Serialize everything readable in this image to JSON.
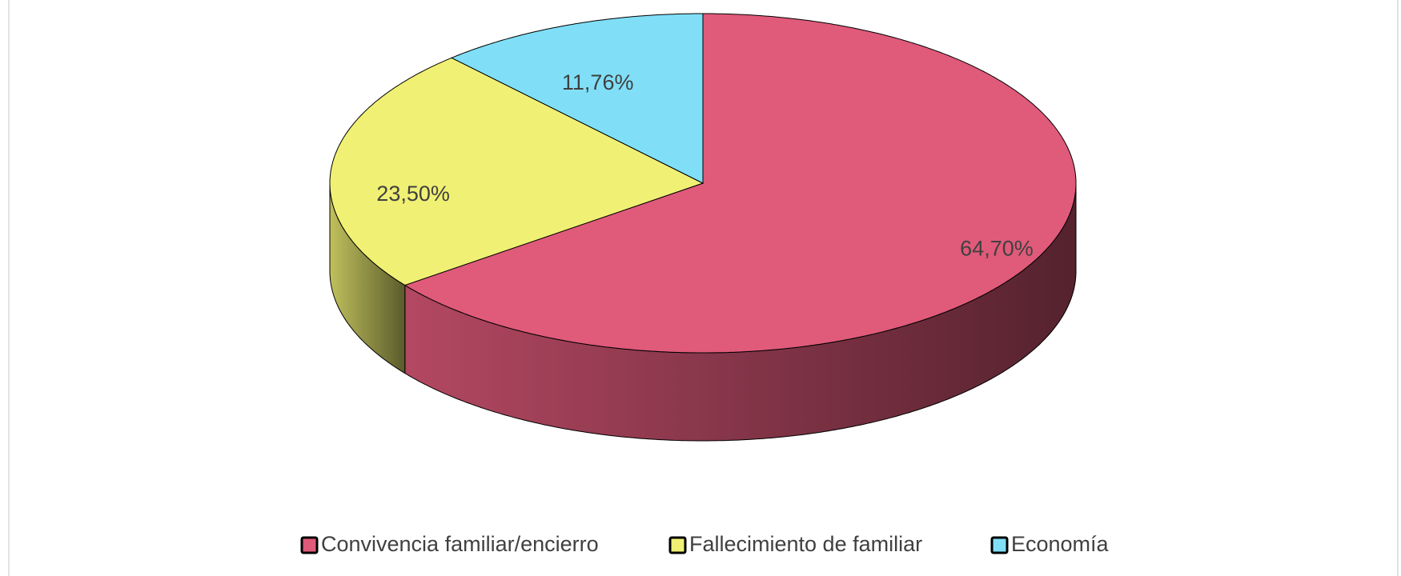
{
  "chart_data": {
    "type": "pie",
    "categories": [
      "Convivencia familiar/encierro",
      "Fallecimiento de familiar",
      "Economía"
    ],
    "values": [
      64.7,
      23.5,
      11.76
    ],
    "value_labels": [
      "64,70%",
      "23,50%",
      "11,76%"
    ],
    "colors": [
      "#e05a7a",
      "#f0f074",
      "#80dff7"
    ],
    "legend": "bottom"
  }
}
